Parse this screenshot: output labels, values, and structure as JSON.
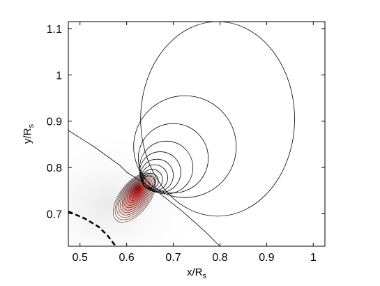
{
  "chart_data": {
    "type": "contour",
    "xlabel": "x/R",
    "xlabel_sub": "s",
    "ylabel": "y/R",
    "ylabel_sub": "s",
    "xlim": [
      0.475,
      1.025
    ],
    "ylim": [
      0.63,
      1.115
    ],
    "xticks": [
      0.5,
      0.6,
      0.7,
      0.8,
      0.9,
      1
    ],
    "yticks": [
      0.7,
      0.8,
      0.9,
      1,
      1.1
    ],
    "xtick_labels": [
      "0.5",
      "0.6",
      "0.7",
      "0.8",
      "0.9",
      "1"
    ],
    "ytick_labels": [
      "0.7",
      "0.8",
      "0.9",
      "1",
      "1.1"
    ],
    "field_lines": {
      "footpoint_a": [
        0.6,
        0.79
      ],
      "footpoint_b": [
        0.67,
        0.745
      ],
      "outer_loop": [
        {
          "center": [
            0.795,
            0.905
          ],
          "rx": 0.165,
          "ry": 0.21
        },
        {
          "center": [
            0.725,
            0.845
          ],
          "rx": 0.11,
          "ry": 0.11
        },
        {
          "center": [
            0.7,
            0.82
          ],
          "rx": 0.075,
          "ry": 0.075
        },
        {
          "center": [
            0.685,
            0.8
          ],
          "rx": 0.057,
          "ry": 0.057
        },
        {
          "center": [
            0.672,
            0.79
          ],
          "rx": 0.044,
          "ry": 0.044
        },
        {
          "center": [
            0.665,
            0.783
          ],
          "rx": 0.035,
          "ry": 0.035
        },
        {
          "center": [
            0.66,
            0.778
          ],
          "rx": 0.028,
          "ry": 0.028
        },
        {
          "center": [
            0.655,
            0.774
          ],
          "rx": 0.022,
          "ry": 0.022
        },
        {
          "center": [
            0.651,
            0.771
          ],
          "rx": 0.017,
          "ry": 0.017
        },
        {
          "center": [
            0.648,
            0.769
          ],
          "rx": 0.013,
          "ry": 0.013
        }
      ]
    },
    "separatrix": [
      [
        0.475,
        0.88
      ],
      [
        0.53,
        0.845
      ],
      [
        0.585,
        0.805
      ],
      [
        0.6,
        0.79
      ],
      [
        0.67,
        0.745
      ],
      [
        0.72,
        0.705
      ],
      [
        0.77,
        0.66
      ],
      [
        0.8,
        0.63
      ]
    ],
    "surface_curve": [
      [
        0.475,
        0.705
      ],
      [
        0.51,
        0.69
      ],
      [
        0.54,
        0.672
      ],
      [
        0.56,
        0.652
      ],
      [
        0.575,
        0.632
      ]
    ],
    "density_blob": {
      "center": [
        0.617,
        0.735
      ],
      "angle_deg": 52,
      "rx": 0.062,
      "ry": 0.032,
      "levels": 14,
      "peak_color": "#c00000"
    }
  }
}
